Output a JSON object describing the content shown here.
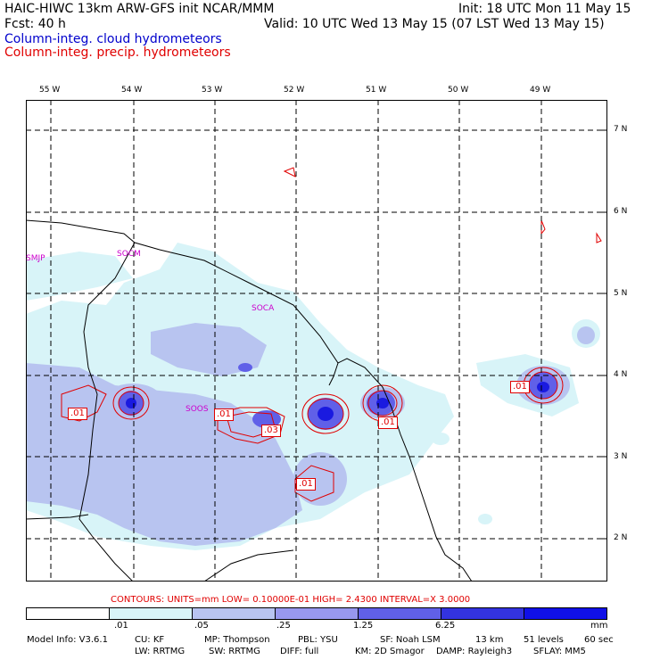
{
  "header": {
    "line1_left": "HAIC-HIWC 13km ARW-GFS init   NCAR/MMM",
    "line1_right": "Init: 18 UTC Mon 11 May 15",
    "line2_left": "Fcst:   40 h",
    "line2_right": "Valid: 10 UTC Wed 13 May 15 (07 LST Wed 13 May 15)",
    "field1": "Column-integ. cloud hydrometeors",
    "field2": "Column-integ. precip. hydrometeors"
  },
  "map": {
    "lon_labels": [
      "55 W",
      "54 W",
      "53 W",
      "52 W",
      "51 W",
      "50 W",
      "49 W"
    ],
    "lat_labels": [
      "7 N",
      "6 N",
      "5 N",
      "4 N",
      "3 N",
      "2 N"
    ],
    "places": [
      "SMJP",
      "SOCM",
      "SOCA",
      "SOOS"
    ],
    "contour_labels": [
      ".01",
      ".01",
      ".03",
      ".01",
      ".01",
      ".01"
    ]
  },
  "contours_info": "CONTOURS:  UNITS=mm  LOW= 0.10000E-01  HIGH=  2.4300      INTERVAL=X  3.0000",
  "legend": {
    "ticks": [
      ".01",
      ".05",
      ".25",
      "1.25",
      "6.25"
    ],
    "unit": "mm",
    "colors": [
      "#ffffff",
      "#d8f4f8",
      "#b8c4f0",
      "#9898ee",
      "#6060e8",
      "#3333e0",
      "#1010e8"
    ]
  },
  "model_info": {
    "line1": [
      "Model Info: V3.6.1",
      "CU: KF",
      "MP: Thompson",
      "PBL: YSU",
      "SF: Noah LSM",
      "13 km",
      "51 levels",
      "60 sec"
    ],
    "line2": [
      "LW: RRTMG",
      "SW: RRTMG",
      "DIFF: full",
      "KM: 2D Smagor",
      "DAMP: Rayleigh3",
      "SFLAY: MM5"
    ]
  }
}
